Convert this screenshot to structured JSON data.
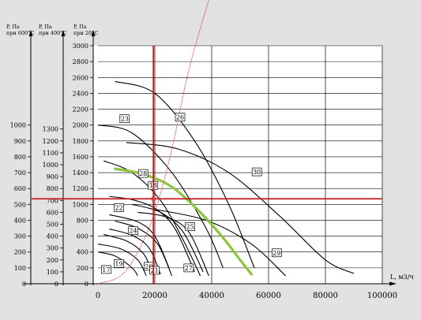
{
  "chart_data": {
    "type": "line",
    "axes": {
      "left": [
        {
          "header": [
            "P, Па",
            "при 600°С"
          ],
          "ticks": [
            0,
            100,
            200,
            300,
            400,
            500,
            600,
            700,
            800,
            900,
            1000
          ]
        },
        {
          "header": [
            "P, Па",
            "при 400°С"
          ],
          "ticks": [
            0,
            100,
            200,
            300,
            400,
            500,
            600,
            700,
            800,
            900,
            1000,
            1100,
            1200,
            1300
          ]
        },
        {
          "header": [
            "P, Па",
            "при 20°С"
          ],
          "ticks": [
            0,
            200,
            400,
            600,
            800,
            1000,
            1200,
            1400,
            1600,
            1800,
            2000,
            2200,
            2400,
            2600,
            2800,
            3000
          ]
        }
      ],
      "x": {
        "label": "L, м3/ч",
        "ticks": [
          0,
          20000,
          40000,
          60000,
          80000,
          100000
        ],
        "range": [
          0,
          100000
        ]
      },
      "y_range_20C": [
        0,
        3000
      ]
    },
    "grid": true,
    "series": [
      {
        "label": "17",
        "points": [
          [
            0,
            400
          ],
          [
            6000,
            350
          ],
          [
            12000,
            200
          ],
          [
            14000,
            100
          ]
        ]
      },
      {
        "label": "19",
        "points": [
          [
            0,
            500
          ],
          [
            8000,
            440
          ],
          [
            14000,
            300
          ],
          [
            17000,
            100
          ]
        ]
      },
      {
        "label": "20",
        "points": [
          [
            2000,
            620
          ],
          [
            10000,
            540
          ],
          [
            16000,
            380
          ],
          [
            19000,
            150
          ]
        ]
      },
      {
        "label": "21",
        "points": [
          [
            4000,
            690
          ],
          [
            12000,
            610
          ],
          [
            18000,
            450
          ],
          [
            22000,
            120
          ]
        ]
      },
      {
        "label": "22",
        "points": [
          [
            4000,
            870
          ],
          [
            14000,
            780
          ],
          [
            20000,
            600
          ],
          [
            25000,
            200
          ]
        ]
      },
      {
        "label": "24",
        "points": [
          [
            6000,
            790
          ],
          [
            14000,
            700
          ],
          [
            21000,
            500
          ],
          [
            26000,
            100
          ]
        ]
      },
      {
        "label": "18",
        "points": [
          [
            4000,
            1100
          ],
          [
            12000,
            1060
          ],
          [
            20000,
            950
          ],
          [
            27000,
            700
          ],
          [
            34000,
            150
          ]
        ]
      },
      {
        "label": "25",
        "points": [
          [
            12000,
            1000
          ],
          [
            22000,
            900
          ],
          [
            30000,
            650
          ],
          [
            37000,
            150
          ]
        ]
      },
      {
        "label": "27",
        "points": [
          [
            14000,
            900
          ],
          [
            24000,
            840
          ],
          [
            32000,
            650
          ],
          [
            39000,
            100
          ]
        ]
      },
      {
        "label": "28",
        "points": [
          [
            2000,
            1550
          ],
          [
            12000,
            1400
          ],
          [
            22000,
            1050
          ],
          [
            30000,
            550
          ],
          [
            36000,
            100
          ]
        ]
      },
      {
        "label": "23",
        "points": [
          [
            0,
            2000
          ],
          [
            12000,
            1900
          ],
          [
            26000,
            1400
          ],
          [
            38000,
            700
          ],
          [
            44000,
            200
          ]
        ]
      },
      {
        "label": "26",
        "points": [
          [
            6000,
            2550
          ],
          [
            20000,
            2400
          ],
          [
            34000,
            1800
          ],
          [
            46000,
            1000
          ],
          [
            55000,
            200
          ]
        ]
      },
      {
        "label": "29",
        "points": [
          [
            18000,
            950
          ],
          [
            38000,
            800
          ],
          [
            54000,
            500
          ],
          [
            66000,
            100
          ]
        ]
      },
      {
        "label": "30",
        "points": [
          [
            10000,
            1780
          ],
          [
            28000,
            1700
          ],
          [
            46000,
            1400
          ],
          [
            64000,
            850
          ],
          [
            80000,
            300
          ],
          [
            90000,
            130
          ]
        ]
      }
    ],
    "green_curve": [
      [
        6000,
        1450
      ],
      [
        16000,
        1380
      ],
      [
        26000,
        1220
      ],
      [
        36000,
        900
      ],
      [
        44000,
        580
      ],
      [
        50000,
        300
      ],
      [
        54000,
        120
      ]
    ],
    "red_curve": [
      [
        0,
        0
      ],
      [
        8000,
        100
      ],
      [
        14000,
        400
      ],
      [
        20000,
        900
      ],
      [
        26000,
        1700
      ],
      [
        32000,
        2700
      ],
      [
        40000,
        3700
      ]
    ],
    "crosshair": {
      "x": 19500,
      "y_20C": 1070
    },
    "curve_labels": [
      {
        "text": "17",
        "x": 1500,
        "y": 150
      },
      {
        "text": "19",
        "x": 6000,
        "y": 225
      },
      {
        "text": "20",
        "x": 16500,
        "y": 190
      },
      {
        "text": "21",
        "x": 18500,
        "y": 140
      },
      {
        "text": "22",
        "x": 6000,
        "y": 930
      },
      {
        "text": "24",
        "x": 11000,
        "y": 640
      },
      {
        "text": "18",
        "x": 18000,
        "y": 1210
      },
      {
        "text": "25",
        "x": 31000,
        "y": 690
      },
      {
        "text": "27",
        "x": 30500,
        "y": 170
      },
      {
        "text": "28",
        "x": 14500,
        "y": 1360
      },
      {
        "text": "23",
        "x": 8000,
        "y": 2050
      },
      {
        "text": "26",
        "x": 27500,
        "y": 2070
      },
      {
        "text": "29",
        "x": 61500,
        "y": 360
      },
      {
        "text": "30",
        "x": 54500,
        "y": 1380
      }
    ]
  }
}
